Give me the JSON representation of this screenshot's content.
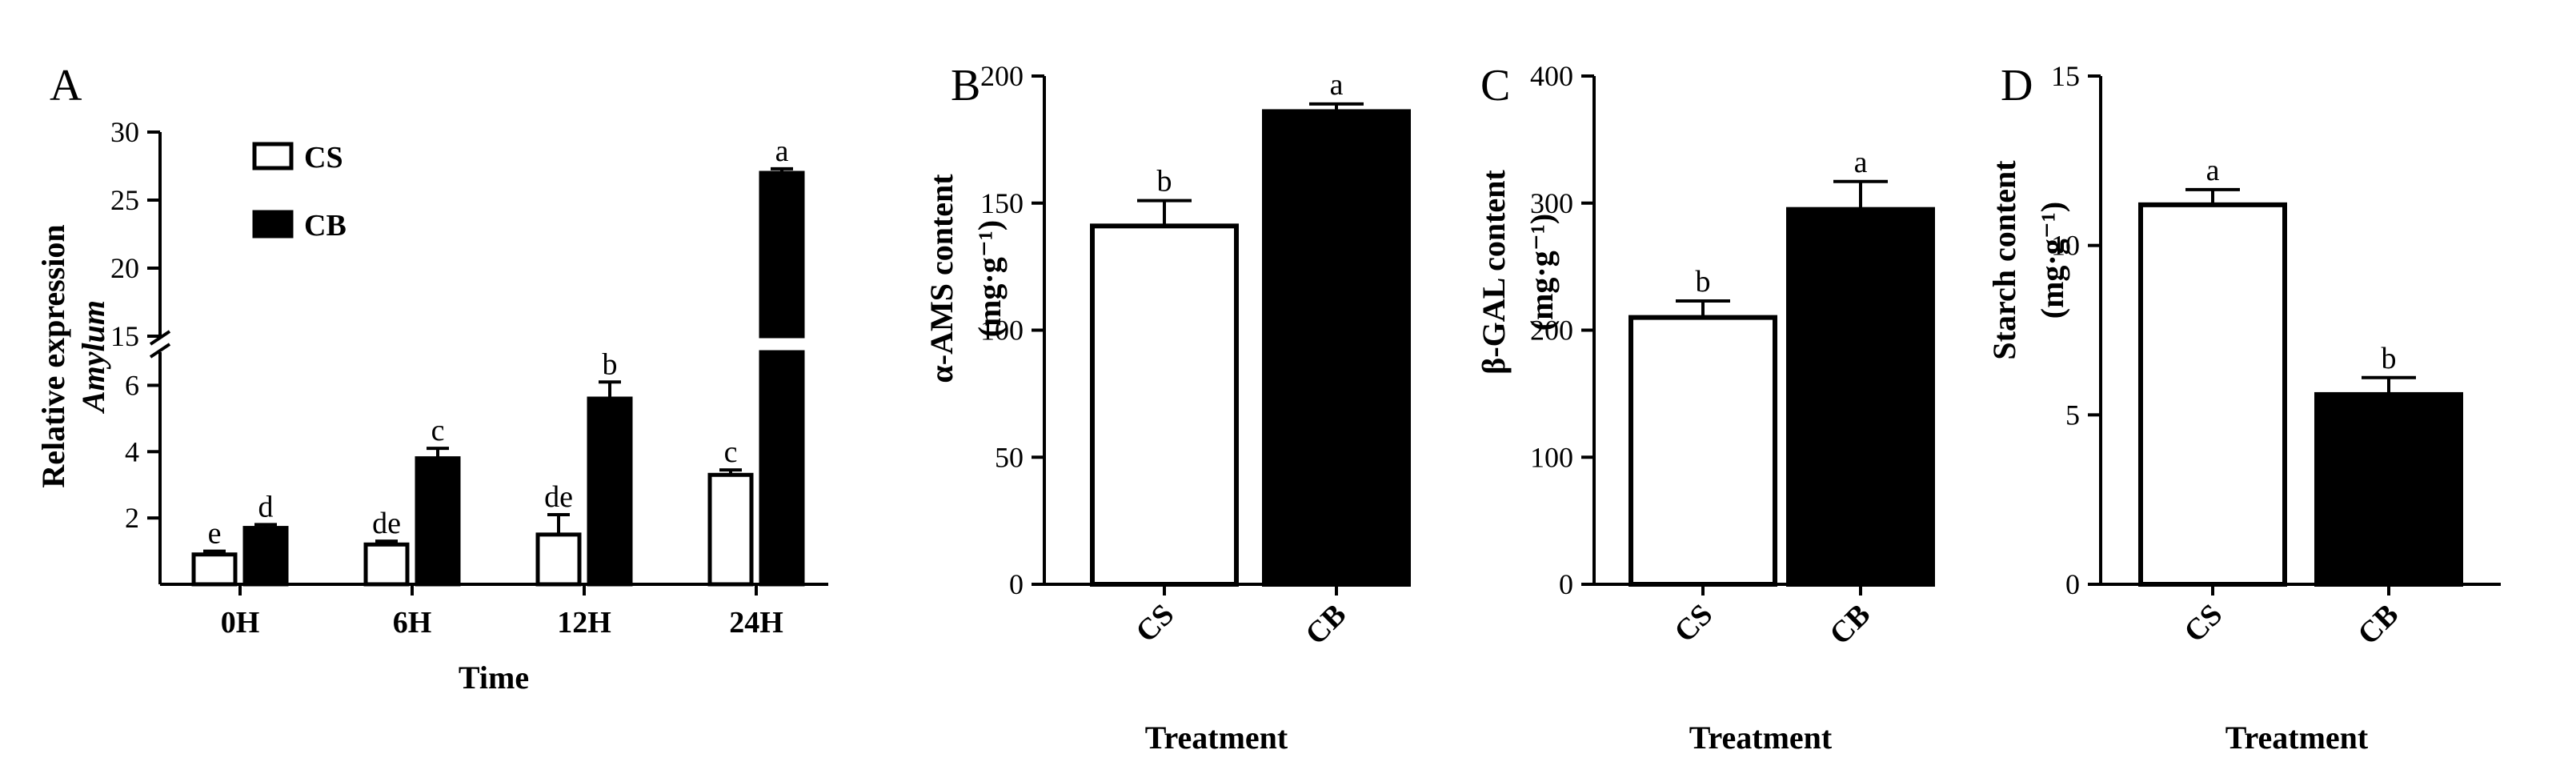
{
  "chart_data": [
    {
      "panel": "A",
      "type": "bar",
      "categories": [
        "0H",
        "6H",
        "12H",
        "24H"
      ],
      "xlabel": "Time",
      "ylabel": [
        "Relative expression",
        "Amylum"
      ],
      "broken_axis": true,
      "ylim_lower": [
        0,
        7
      ],
      "ylim_upper": [
        15,
        30
      ],
      "lower_ticks": [
        "2",
        "4",
        "6"
      ],
      "upper_ticks": [
        "15",
        "20",
        "25",
        "30"
      ],
      "legend_position": "top-left",
      "series": [
        {
          "name": "CS",
          "color": "#ffffff",
          "values": [
            0.9,
            1.2,
            1.5,
            3.3
          ],
          "errors": [
            0.1,
            0.1,
            0.6,
            0.15
          ],
          "letters": [
            "e",
            "de",
            "de",
            "c"
          ]
        },
        {
          "name": "CB",
          "color": "#000000",
          "values": [
            1.7,
            3.8,
            5.6,
            27.0
          ],
          "errors": [
            0.1,
            0.3,
            0.5,
            0.3
          ],
          "letters": [
            "d",
            "c",
            "b",
            "a"
          ]
        }
      ]
    },
    {
      "panel": "B",
      "type": "bar",
      "categories": [
        "CS",
        "CB"
      ],
      "values": [
        141,
        186
      ],
      "errors": [
        10,
        3
      ],
      "letters": [
        "b",
        "a"
      ],
      "colors": [
        "#ffffff",
        "#000000"
      ],
      "ylim": [
        0,
        200
      ],
      "yticks": [
        "0",
        "50",
        "100",
        "150",
        "200"
      ],
      "ylabel": [
        "α-AMS content",
        "(mg·g⁻¹)"
      ],
      "xlabel": "Treatment"
    },
    {
      "panel": "C",
      "type": "bar",
      "categories": [
        "CS",
        "CB"
      ],
      "values": [
        210,
        295
      ],
      "errors": [
        13,
        22
      ],
      "letters": [
        "b",
        "a"
      ],
      "colors": [
        "#ffffff",
        "#000000"
      ],
      "ylim": [
        0,
        400
      ],
      "yticks": [
        "0",
        "100",
        "200",
        "300",
        "400"
      ],
      "ylabel": [
        "β-GAL content",
        "(mg·g⁻¹)"
      ],
      "xlabel": "Treatment"
    },
    {
      "panel": "D",
      "type": "bar",
      "categories": [
        "CS",
        "CB"
      ],
      "values": [
        11.2,
        5.6
      ],
      "errors": [
        0.45,
        0.5
      ],
      "letters": [
        "a",
        "b"
      ],
      "colors": [
        "#ffffff",
        "#000000"
      ],
      "ylim": [
        0,
        15
      ],
      "yticks": [
        "0",
        "5",
        "10",
        "15"
      ],
      "ylabel": [
        "Starch content",
        "(mg·g⁻¹)"
      ],
      "xlabel": "Treatment"
    }
  ]
}
